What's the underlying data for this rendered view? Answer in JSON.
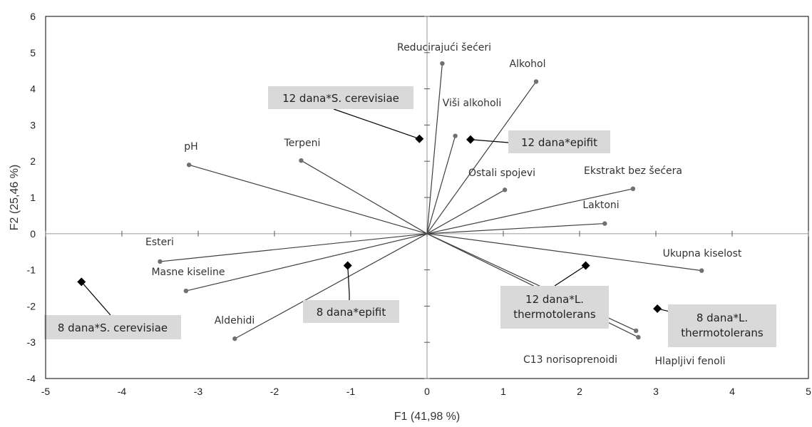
{
  "chart_data": {
    "type": "scatter",
    "subtype": "biplot",
    "xlabel": "F1 (41,98 %)",
    "ylabel": "F2 (25,46 %)",
    "xlim": [
      -5,
      5
    ],
    "ylim": [
      -4,
      6
    ],
    "xticks": [
      -5,
      -4,
      -3,
      -2,
      -1,
      0,
      1,
      2,
      3,
      4,
      5
    ],
    "yticks": [
      -4,
      -3,
      -2,
      -1,
      0,
      1,
      2,
      3,
      4,
      5,
      6
    ],
    "grid": false,
    "legend": "none",
    "colors": {
      "variables": "#707070",
      "variable_lines": "#404040",
      "observations": "#000000",
      "observation_label_bg": "#d9d9d9",
      "zero_lines": "#a6a6a6"
    },
    "variables": [
      {
        "name": "Reducirajući šećeri",
        "x": 0.2,
        "y": 4.7
      },
      {
        "name": "Alkohol",
        "x": 1.43,
        "y": 4.2
      },
      {
        "name": "Viši alkoholi",
        "x": 0.37,
        "y": 2.7
      },
      {
        "name": "pH",
        "x": -3.12,
        "y": 1.9
      },
      {
        "name": "Terpeni",
        "x": -1.65,
        "y": 2.02
      },
      {
        "name": "Ostali spojevi",
        "x": 1.02,
        "y": 1.21
      },
      {
        "name": "Ekstrakt bez šećera",
        "x": 2.7,
        "y": 1.24
      },
      {
        "name": "Laktoni",
        "x": 2.33,
        "y": 0.28
      },
      {
        "name": "Esteri",
        "x": -3.5,
        "y": -0.77
      },
      {
        "name": "Masne kiseline",
        "x": -3.16,
        "y": -1.58
      },
      {
        "name": "Aldehidi",
        "x": -2.52,
        "y": -2.9
      },
      {
        "name": "Ukupna kiselost",
        "x": 3.6,
        "y": -1.02
      },
      {
        "name": "C13 norisoprenoidi",
        "x": 2.74,
        "y": -2.68
      },
      {
        "name": "Hlapljivi fenoli",
        "x": 2.77,
        "y": -2.86
      }
    ],
    "observations": [
      {
        "name": "12 dana*S. cerevisiae",
        "x": -0.1,
        "y": 2.62
      },
      {
        "name": "12 dana*epifit",
        "x": 0.57,
        "y": 2.6
      },
      {
        "name": "8 dana*S. cerevisiae",
        "x": -4.53,
        "y": -1.33
      },
      {
        "name": "8 dana*epifit",
        "x": -1.04,
        "y": -0.88
      },
      {
        "name": "12 dana*L. thermotolerans",
        "x": 2.08,
        "y": -0.88
      },
      {
        "name": "8 dana*L. thermotolerans",
        "x": 3.02,
        "y": -2.07
      }
    ]
  }
}
